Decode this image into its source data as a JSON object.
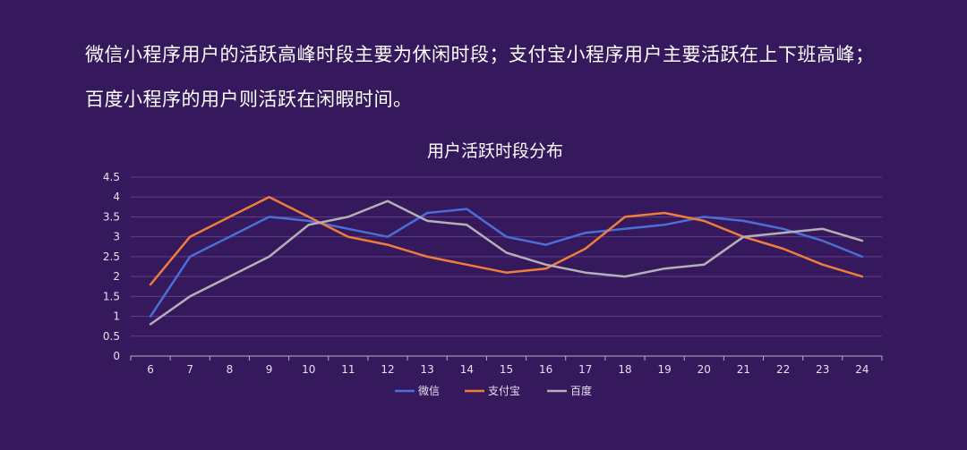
{
  "headline": {
    "line1": "微信小程序用户的活跃高峰时段主要为休闲时段；支付宝小程序用户主要活跃在上下班高峰；",
    "line2": "百度小程序的用户则活跃在闲暇时间。"
  },
  "chart_data": {
    "type": "line",
    "title": "用户活跃时段分布",
    "xlabel": "",
    "ylabel": "",
    "x": [
      "6",
      "7",
      "8",
      "9",
      "10",
      "11",
      "12",
      "13",
      "14",
      "15",
      "16",
      "17",
      "18",
      "19",
      "20",
      "21",
      "22",
      "23",
      "24"
    ],
    "ylim": [
      0,
      4.5
    ],
    "yticks": [
      "0",
      "0.5",
      "1",
      "1.5",
      "2",
      "2.5",
      "3",
      "3.5",
      "4",
      "4.5"
    ],
    "grid": true,
    "legend_position": "bottom",
    "series": [
      {
        "name": "微信",
        "color": "#4a6fd8",
        "values": [
          1.0,
          2.5,
          3.0,
          3.5,
          3.4,
          3.2,
          3.0,
          3.6,
          3.7,
          3.0,
          2.8,
          3.1,
          3.2,
          3.3,
          3.5,
          3.4,
          3.2,
          2.9,
          2.5
        ]
      },
      {
        "name": "支付宝",
        "color": "#f07e3a",
        "values": [
          1.8,
          3.0,
          3.5,
          4.0,
          3.5,
          3.0,
          2.8,
          2.5,
          2.3,
          2.1,
          2.2,
          2.7,
          3.5,
          3.6,
          3.4,
          3.0,
          2.7,
          2.3,
          2.0
        ]
      },
      {
        "name": "百度",
        "color": "#b4b0b8",
        "values": [
          0.8,
          1.5,
          2.0,
          2.5,
          3.3,
          3.5,
          3.9,
          3.4,
          3.3,
          2.6,
          2.3,
          2.1,
          2.0,
          2.2,
          2.3,
          3.0,
          3.1,
          3.2,
          2.9
        ]
      }
    ]
  }
}
